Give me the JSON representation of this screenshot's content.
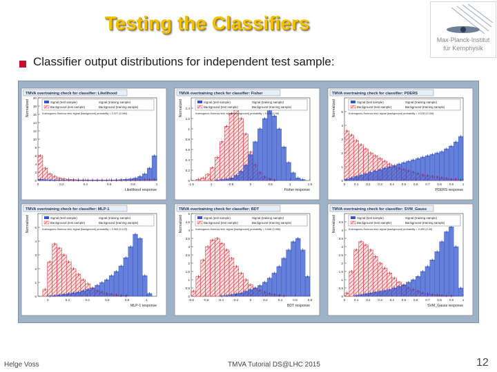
{
  "slide": {
    "title": "Testing the Classifiers",
    "bullet": "Classifier output distributions for independent test sample:",
    "footer_left": "Helge Voss",
    "footer_center": "TMVA Tutorial   DS@LHC 2015",
    "page_number": "12",
    "logo_line1": "Max-Planck-Institut",
    "logo_line2": "für Kernphysik"
  },
  "colors": {
    "signal": "#3355cc",
    "background": "#e0202a",
    "panel_bg": "#9fb3c8",
    "title": "#f2c200"
  },
  "legend": {
    "signal_test": "Signal (test sample)",
    "signal_train": "Signal (training sample)",
    "bkg_test": "Background (test sample)",
    "bkg_train": "Background (training sample)"
  },
  "chart_data": [
    {
      "type": "histogram",
      "title": "TMVA overtraining check for classifier: Likelihood",
      "xlabel": "Likelihood response",
      "ylabel": "Normalized",
      "ks": "Kolmogorov-Smirnov test: signal (background) probability = 0.027 (0.084)",
      "xlim": [
        0,
        1
      ],
      "ylim": [
        0,
        20
      ],
      "xticks": [
        "0",
        "0.2",
        "0.4",
        "0.6",
        "0.8",
        "1"
      ],
      "yticks": [
        "0",
        "2",
        "4",
        "6",
        "8",
        "10",
        "12",
        "14",
        "16",
        "18",
        "20"
      ],
      "signal": [
        0.3,
        0.2,
        0.15,
        0.1,
        0.1,
        0.1,
        0.1,
        0.1,
        0.1,
        0.1,
        0.1,
        0.1,
        0.1,
        0.1,
        0.1,
        0.1,
        0.15,
        0.2,
        0.3,
        0.4,
        0.6,
        1.0,
        1.6,
        3.0,
        6.0
      ],
      "background": [
        6.0,
        3.0,
        1.6,
        1.0,
        0.6,
        0.4,
        0.3,
        0.2,
        0.15,
        0.1,
        0.1,
        0.1,
        0.1,
        0.1,
        0.1,
        0.1,
        0.1,
        0.1,
        0.1,
        0.1,
        0.1,
        0.15,
        0.2,
        0.2,
        0.3
      ]
    },
    {
      "type": "histogram",
      "title": "TMVA overtraining check for classifier: Fisher",
      "xlabel": "Fisher response",
      "ylabel": "Normalized",
      "ks": "Kolmogorov-Smirnov test: signal (background) probability = 0.616 (0.96)",
      "xlim": [
        -1.5,
        1.5
      ],
      "ylim": [
        0,
        1.6
      ],
      "xticks": [
        "-1.5",
        "-1",
        "-0.5",
        "0",
        "0.5",
        "1",
        "1.5"
      ],
      "yticks": [
        "0",
        "0.2",
        "0.4",
        "0.6",
        "0.8",
        "1",
        "1.2",
        "1.4"
      ],
      "signal": [
        0,
        0,
        0,
        0,
        0,
        0.01,
        0.02,
        0.03,
        0.05,
        0.1,
        0.18,
        0.3,
        0.5,
        0.75,
        1.0,
        1.2,
        1.35,
        1.25,
        1.0,
        0.65,
        0.35,
        0.15,
        0.05,
        0.02,
        0
      ],
      "background": [
        0,
        0.02,
        0.05,
        0.12,
        0.25,
        0.45,
        0.75,
        1.05,
        1.3,
        1.4,
        1.2,
        0.9,
        0.55,
        0.3,
        0.15,
        0.07,
        0.03,
        0.01,
        0,
        0,
        0,
        0,
        0,
        0,
        0
      ]
    },
    {
      "type": "histogram",
      "title": "TMVA overtraining check for classifier: PDERS",
      "xlabel": "PDERS response",
      "ylabel": "Normalized",
      "ks": "Kolmogorov-Smirnov test: signal (background) probability = 0.015 (0.159)",
      "xlim": [
        0,
        1
      ],
      "ylim": [
        0,
        6
      ],
      "xticks": [
        "0",
        "0.1",
        "0.2",
        "0.3",
        "0.4",
        "0.5",
        "0.6",
        "0.7",
        "0.8",
        "0.9",
        "1"
      ],
      "yticks": [
        "0",
        "1",
        "2",
        "3",
        "4",
        "5"
      ],
      "signal": [
        0.1,
        0.2,
        0.3,
        0.4,
        0.5,
        0.6,
        0.7,
        0.8,
        0.9,
        1.0,
        1.1,
        1.2,
        1.3,
        1.4,
        1.5,
        1.6,
        1.7,
        1.8,
        1.9,
        2.0,
        2.1,
        2.3,
        2.5,
        2.8,
        3.2
      ],
      "background": [
        3.6,
        3.3,
        2.9,
        2.6,
        2.3,
        2.0,
        1.8,
        1.6,
        1.4,
        1.2,
        1.0,
        0.9,
        0.8,
        0.7,
        0.6,
        0.5,
        0.4,
        0.35,
        0.3,
        0.25,
        0.2,
        0.15,
        0.1,
        0.1,
        0.05
      ]
    },
    {
      "type": "histogram",
      "title": "TMVA overtraining check for classifier: MLP-1",
      "xlabel": "MLP-1 response",
      "ylabel": "Normalized",
      "ks": "Kolmogorov-Smirnov test: signal (background) probability = 0.963 (0.123)",
      "xlim": [
        -0.1,
        1.1
      ],
      "ylim": [
        0,
        6
      ],
      "xticks": [
        "0",
        "0.2",
        "0.4",
        "0.6",
        "0.8",
        "1"
      ],
      "yticks": [
        "0",
        "1",
        "2",
        "3",
        "4",
        "5"
      ],
      "signal": [
        0,
        0,
        0.02,
        0.05,
        0.1,
        0.15,
        0.2,
        0.25,
        0.3,
        0.4,
        0.5,
        0.6,
        0.8,
        1.0,
        1.2,
        1.5,
        1.8,
        2.2,
        2.8,
        3.6,
        4.5,
        4.2,
        1.5,
        0.2,
        0
      ],
      "background": [
        0,
        0.5,
        2.5,
        3.8,
        3.5,
        3.0,
        2.5,
        2.0,
        1.6,
        1.2,
        0.9,
        0.6,
        0.4,
        0.3,
        0.2,
        0.15,
        0.1,
        0.05,
        0.02,
        0,
        0,
        0,
        0,
        0,
        0
      ]
    },
    {
      "type": "histogram",
      "title": "TMVA overtraining check for classifier: BDT",
      "xlabel": "BDT response",
      "ylabel": "Normalized",
      "ks": "Kolmogorov-Smirnov test: signal (background) probability = 0.648 (0.956)",
      "xlim": [
        -0.8,
        0.8
      ],
      "ylim": [
        0,
        5
      ],
      "xticks": [
        "-0.8",
        "-0.6",
        "-0.4",
        "-0.2",
        "0",
        "0.2",
        "0.4",
        "0.6",
        "0.8"
      ],
      "yticks": [
        "0",
        "0.5",
        "1",
        "1.5",
        "2",
        "2.5",
        "3",
        "3.5",
        "4",
        "4.5",
        "5"
      ],
      "signal": [
        0,
        0,
        0,
        0,
        0,
        0,
        0.02,
        0.05,
        0.1,
        0.15,
        0.2,
        0.3,
        0.4,
        0.5,
        0.65,
        0.85,
        1.1,
        1.4,
        1.8,
        2.3,
        2.8,
        3.3,
        3.5,
        2.8,
        1.2
      ],
      "background": [
        0.3,
        1.2,
        2.2,
        3.0,
        3.4,
        3.5,
        3.2,
        2.8,
        2.3,
        1.8,
        1.4,
        1.0,
        0.7,
        0.5,
        0.35,
        0.25,
        0.15,
        0.1,
        0.05,
        0.02,
        0,
        0,
        0,
        0,
        0
      ]
    },
    {
      "type": "histogram",
      "title": "TMVA overtraining check for classifier: SVM_Gauss",
      "xlabel": "SVM_Gauss response",
      "ylabel": "Normalized",
      "ks": "Kolmogorov-Smirnov test: signal (background) probability = 0.499 (0.49)",
      "xlim": [
        0,
        1
      ],
      "ylim": [
        0,
        5
      ],
      "xticks": [
        "0",
        "0.1",
        "0.2",
        "0.3",
        "0.4",
        "0.5",
        "0.6",
        "0.7",
        "0.8",
        "0.9",
        "1"
      ],
      "yticks": [
        "0",
        "0.5",
        "1",
        "1.5",
        "2",
        "2.5",
        "3",
        "3.5",
        "4",
        "4.5"
      ],
      "signal": [
        0,
        0,
        0.05,
        0.1,
        0.15,
        0.2,
        0.25,
        0.3,
        0.35,
        0.4,
        0.5,
        0.6,
        0.7,
        0.85,
        1.0,
        1.2,
        1.5,
        1.8,
        2.2,
        2.7,
        3.3,
        3.9,
        4.2,
        3.0,
        0.5
      ],
      "background": [
        0.2,
        1.5,
        2.8,
        3.3,
        3.1,
        2.8,
        2.4,
        2.0,
        1.7,
        1.4,
        1.1,
        0.85,
        0.65,
        0.5,
        0.4,
        0.3,
        0.2,
        0.15,
        0.1,
        0.08,
        0.05,
        0.03,
        0.02,
        0,
        0
      ]
    }
  ]
}
